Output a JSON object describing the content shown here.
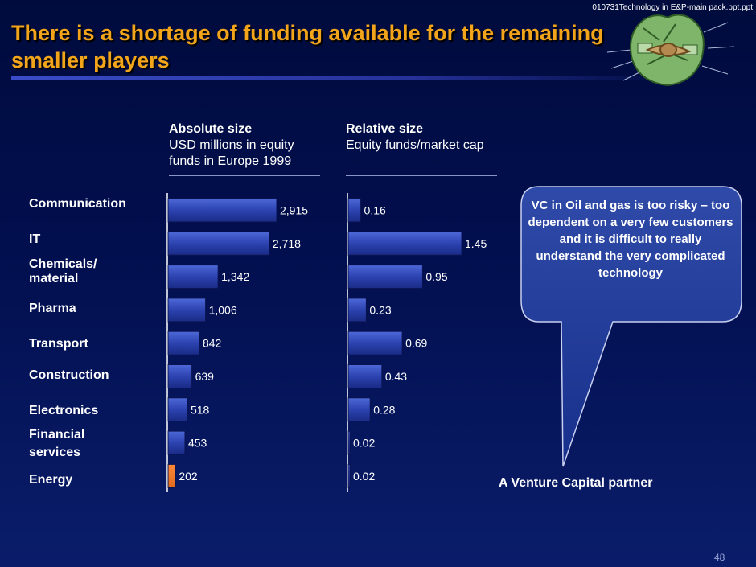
{
  "file_label": "010731Technology in E&P-main pack.ppt.ppt",
  "title": "There is a shortage of funding available for the remaining smaller players",
  "page_number": "48",
  "callout_text": "VC in Oil and gas is too risky – too dependent on a very few  customers and it is difficult to really understand the very complicated technology",
  "source_label": "A Venture Capital partner",
  "icon": "money-bag-icon",
  "colors": {
    "title": "#f2a51a",
    "bar": "#2c43b0",
    "highlight_bar": "#e06a1c",
    "callout": "#1c3392"
  },
  "chart_data": [
    {
      "type": "bar",
      "orientation": "horizontal",
      "title": "Absolute size",
      "subtitle": "USD millions in equity funds in Europe 1999",
      "categories": [
        "Communication",
        "IT",
        "Chemicals/ material",
        "Pharma",
        "Transport",
        "Construction",
        "Electronics",
        "Financial services",
        "Energy"
      ],
      "values": [
        2915,
        2718,
        1342,
        1006,
        842,
        639,
        518,
        453,
        202
      ],
      "labels": [
        "2,915",
        "2,718",
        "1,342",
        "1,006",
        "842",
        "639",
        "518",
        "453",
        "202"
      ],
      "highlight": "Energy",
      "xlim": [
        0,
        2915
      ]
    },
    {
      "type": "bar",
      "orientation": "horizontal",
      "title": "Relative size",
      "subtitle": "Equity funds/market cap",
      "categories": [
        "Communication",
        "IT",
        "Chemicals/ material",
        "Pharma",
        "Transport",
        "Construction",
        "Electronics",
        "Financial services",
        "Energy"
      ],
      "values": [
        0.16,
        1.45,
        0.95,
        0.23,
        0.69,
        0.43,
        0.28,
        0.02,
        0.02
      ],
      "labels": [
        "0.16",
        "1.45",
        "0.95",
        "0.23",
        "0.69",
        "0.43",
        "0.28",
        "0.02",
        "0.02"
      ],
      "xlim": [
        0,
        1.45
      ]
    }
  ]
}
